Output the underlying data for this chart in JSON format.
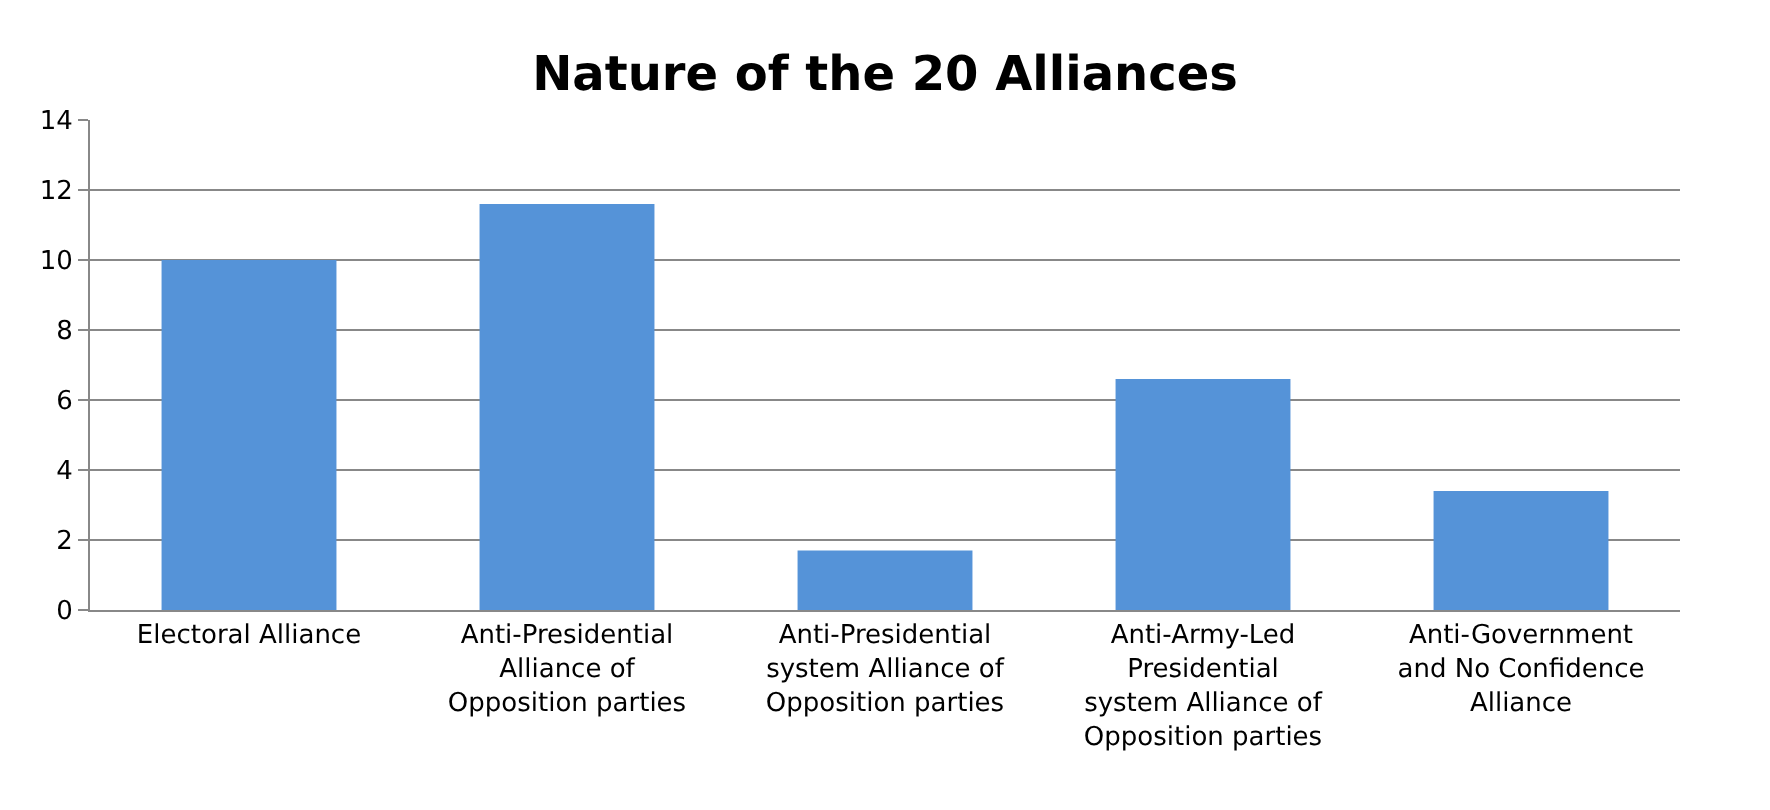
{
  "chart_data": {
    "type": "bar",
    "title": "Nature of the 20 Alliances",
    "categories": [
      "Electoral Alliance",
      "Anti-Presidential Alliance of Opposition parties",
      "Anti-Presidential system Alliance of Opposition parties",
      "Anti-Army-Led Presidential system Alliance of Opposition parties",
      "Anti-Government and No Confidence Alliance"
    ],
    "values": [
      10,
      11.6,
      1.7,
      6.6,
      3.4
    ],
    "color": "#5593d8",
    "ylim": [
      0,
      14
    ],
    "yticks": [
      0,
      2,
      4,
      6,
      8,
      10,
      12,
      14
    ],
    "grid": "y"
  }
}
